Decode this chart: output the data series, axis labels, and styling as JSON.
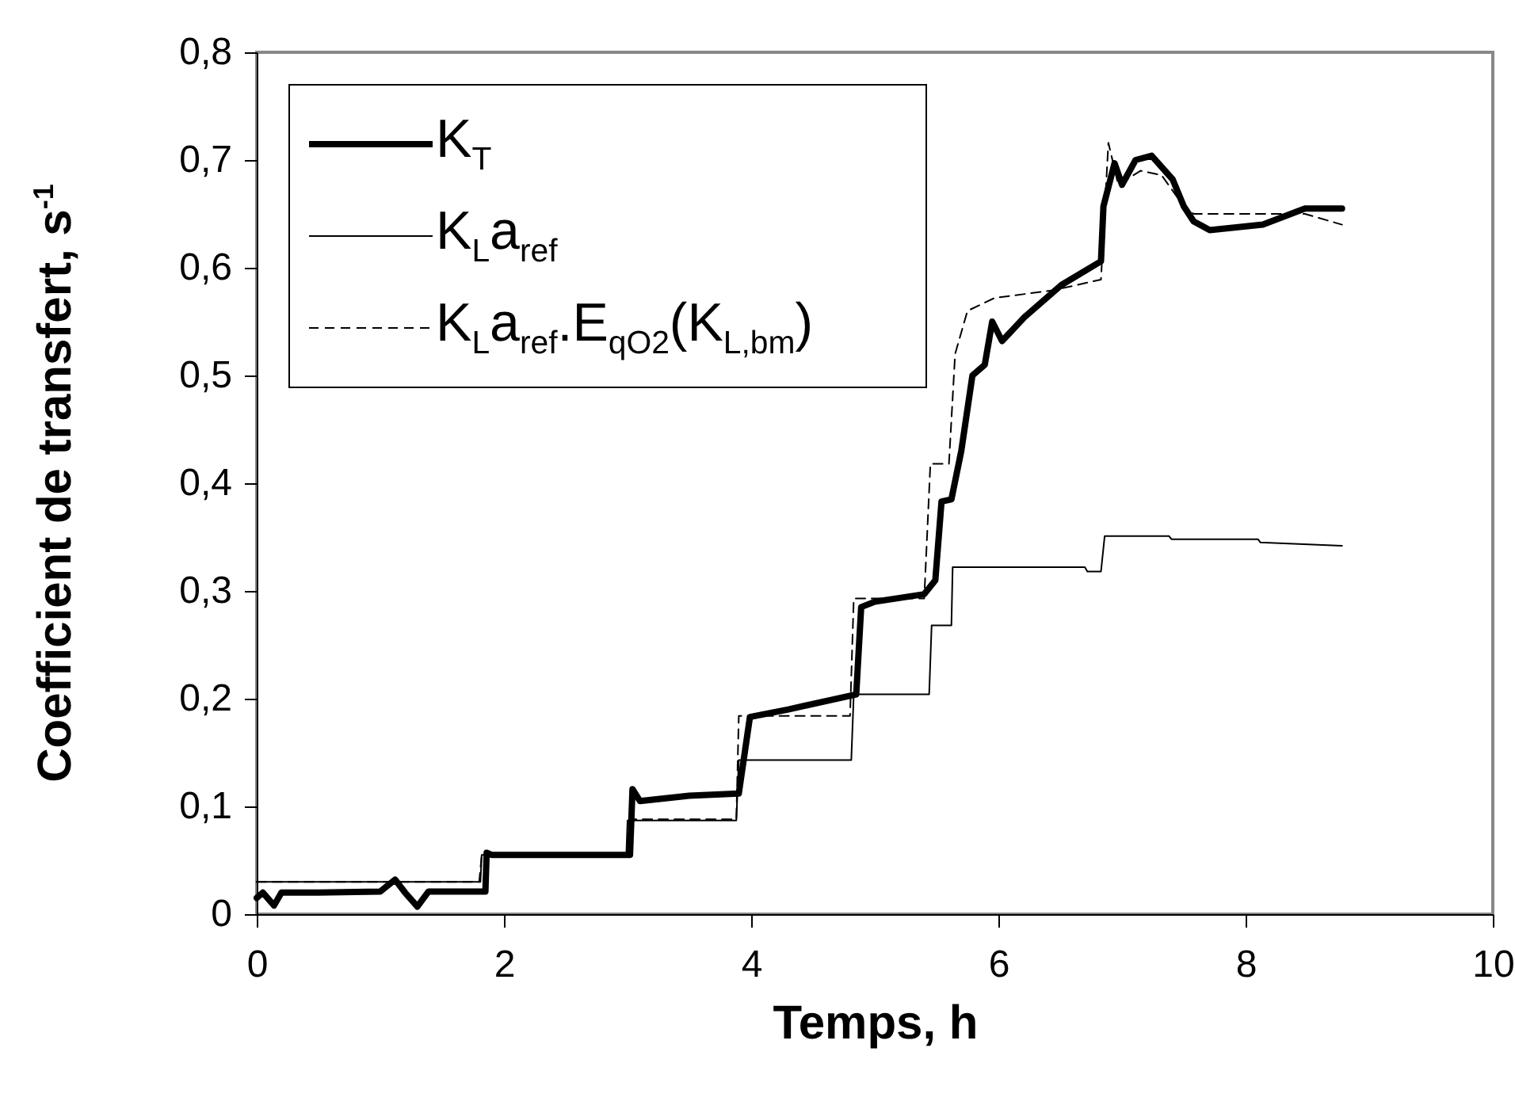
{
  "chart_data": {
    "type": "line",
    "xlabel": "Temps, h",
    "ylabel": "Coefficient de transfert, s$^{-1}$",
    "xlim": [
      0,
      10
    ],
    "xticks": [
      0,
      2,
      4,
      6,
      8,
      10
    ],
    "ylim": [
      0,
      0.8
    ],
    "yticks": [
      0,
      {
        "value": 0.1,
        "label": "0,1"
      },
      {
        "value": 0.2,
        "label": "0,2"
      },
      {
        "value": 0.3,
        "label": "0,3"
      },
      {
        "value": 0.4,
        "label": "0,4"
      },
      {
        "value": 0.5,
        "label": "0,5"
      },
      {
        "value": 0.6,
        "label": "0,6"
      },
      {
        "value": 0.7,
        "label": "0,7"
      },
      {
        "value": 0.8,
        "label": "0,8"
      }
    ],
    "grid": false,
    "legend": "top left",
    "series": [
      {
        "name": "K$_{T}$",
        "color": "#000000",
        "line_style": "solid",
        "x": [
          0,
          0.05,
          0.14,
          0.2,
          0.5,
          1.0,
          1.12,
          1.2,
          1.3,
          1.39,
          1.85,
          1.86,
          1.9,
          2.5,
          3.02,
          3.04,
          3.1,
          3.5,
          3.9,
          3.99,
          4.3,
          4.85,
          4.89,
          5.0,
          5.4,
          5.49,
          5.54,
          5.62,
          5.7,
          5.79,
          5.89,
          5.95,
          6.03,
          6.21,
          6.51,
          6.83,
          6.85,
          6.94,
          7.0,
          7.11,
          7.24,
          7.41,
          7.5,
          7.58,
          7.71,
          8.14,
          8.48,
          8.78
        ],
        "values": [
          0.015,
          0.02,
          0.008,
          0.02,
          0.02,
          0.021,
          0.032,
          0.02,
          0.007,
          0.021,
          0.021,
          0.057,
          0.055,
          0.055,
          0.055,
          0.116,
          0.105,
          0.11,
          0.112,
          0.183,
          0.19,
          0.204,
          0.285,
          0.29,
          0.297,
          0.31,
          0.383,
          0.385,
          0.43,
          0.5,
          0.51,
          0.55,
          0.532,
          0.554,
          0.584,
          0.606,
          0.657,
          0.697,
          0.677,
          0.7,
          0.704,
          0.682,
          0.657,
          0.643,
          0.635,
          0.64,
          0.655,
          0.655
        ]
      },
      {
        "name": "K$_{L}$a$_{ref}$",
        "color": "#000000",
        "line_style": "solid",
        "x": [
          0,
          1.81,
          1.82,
          2.99,
          3.0,
          3.88,
          3.9,
          4.81,
          4.83,
          5.44,
          5.46,
          5.62,
          5.63,
          6.7,
          6.72,
          6.83,
          6.86,
          7.38,
          7.4,
          8.1,
          8.12,
          8.78
        ],
        "values": [
          0.03,
          0.03,
          0.055,
          0.055,
          0.087,
          0.087,
          0.143,
          0.143,
          0.204,
          0.204,
          0.268,
          0.268,
          0.322,
          0.322,
          0.318,
          0.318,
          0.351,
          0.351,
          0.348,
          0.348,
          0.345,
          0.342
        ]
      },
      {
        "name": "K$_{L}$a$_{ref}$.E$_{qO2}$(K$_{L,bm}$)",
        "color": "#000000",
        "line_style": "dashed",
        "x": [
          0,
          1.8,
          1.82,
          3.0,
          3.02,
          3.88,
          3.9,
          4.8,
          4.83,
          5.4,
          5.45,
          5.6,
          5.65,
          5.75,
          5.97,
          6.44,
          6.83,
          6.89,
          6.97,
          7.15,
          7.32,
          7.5,
          7.58,
          8.14,
          8.48,
          8.78
        ],
        "values": [
          0.03,
          0.03,
          0.055,
          0.055,
          0.088,
          0.088,
          0.184,
          0.184,
          0.293,
          0.293,
          0.418,
          0.418,
          0.52,
          0.56,
          0.572,
          0.579,
          0.589,
          0.716,
          0.677,
          0.69,
          0.686,
          0.657,
          0.65,
          0.65,
          0.65,
          0.64
        ]
      }
    ]
  }
}
